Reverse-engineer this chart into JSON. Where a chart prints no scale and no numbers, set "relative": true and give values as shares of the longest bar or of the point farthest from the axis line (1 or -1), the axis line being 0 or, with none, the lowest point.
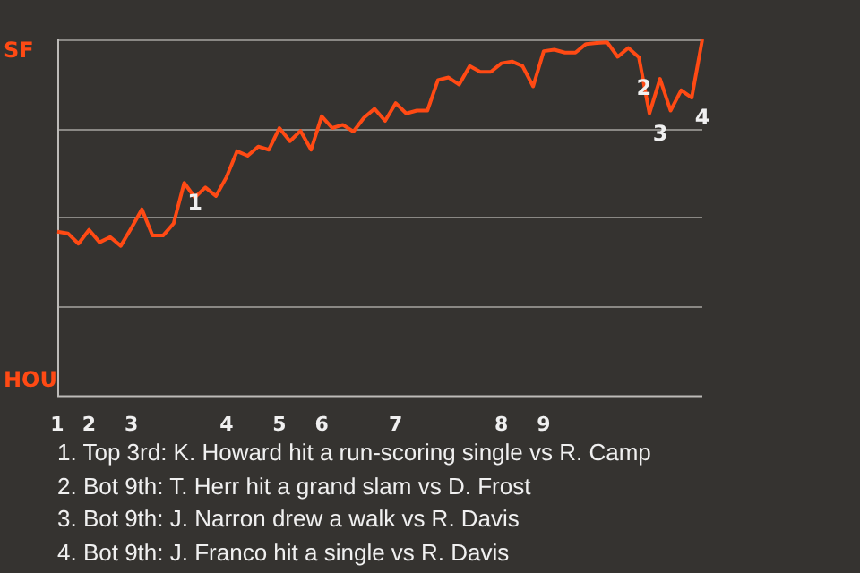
{
  "chart_data": {
    "type": "line",
    "relative": true,
    "categories": [
      "1",
      null,
      null,
      "2",
      null,
      null,
      null,
      "3",
      null,
      null,
      null,
      null,
      null,
      null,
      null,
      null,
      "4",
      null,
      null,
      null,
      null,
      "5",
      null,
      null,
      null,
      "6",
      null,
      null,
      null,
      null,
      null,
      null,
      "7",
      null,
      null,
      null,
      null,
      null,
      null,
      null,
      null,
      null,
      "8",
      null,
      null,
      null,
      "9",
      null,
      null,
      null,
      null,
      null,
      null,
      null,
      null,
      null,
      null,
      null,
      null,
      null,
      null,
      null
    ],
    "series": [
      {
        "color": "#ff4a14",
        "values": [
          0.46,
          0.455,
          0.426,
          0.465,
          0.43,
          0.445,
          0.42,
          0.47,
          0.523,
          0.449,
          0.449,
          0.483,
          0.597,
          0.556,
          0.584,
          0.56,
          0.613,
          0.686,
          0.673,
          0.699,
          0.69,
          0.751,
          0.714,
          0.743,
          0.69,
          0.784,
          0.751,
          0.76,
          0.741,
          0.78,
          0.805,
          0.771,
          0.821,
          0.792,
          0.8,
          0.8,
          0.886,
          0.893,
          0.873,
          0.925,
          0.909,
          0.909,
          0.933,
          0.938,
          0.925,
          0.868,
          0.967,
          0.971,
          0.963,
          0.963,
          0.987,
          0.99,
          0.992,
          0.951,
          0.976,
          0.95,
          0.792,
          0.889,
          0.8,
          0.857,
          0.836,
          1.0
        ]
      }
    ],
    "legend": false,
    "marker": "none",
    "line_style": "solid",
    "ref_lines": [
      {
        "axis": "y",
        "value": 0.25,
        "color": "#8a8884"
      },
      {
        "axis": "y",
        "value": 0.5,
        "color": "#8a8884"
      },
      {
        "axis": "y",
        "value": 0.75,
        "color": "#8a8884"
      },
      {
        "axis": "y",
        "value": 1,
        "color": "#8a8884"
      }
    ],
    "annotations": [
      "SF",
      "HOU",
      {
        "text": "1",
        "y": 0.597
      },
      {
        "text": "2",
        "y": 0.889
      },
      {
        "text": "3",
        "y": 0.792
      },
      {
        "text": "4",
        "y": 0.836
      },
      "1. Top 3rd: K. Howard hit a run-scoring single vs R. Camp",
      "2. Bot 9th: T. Herr hit a grand slam vs D. Frost",
      "3. Bot 9th: J. Narron drew a walk vs R. Davis",
      "4. Bot 9th: J. Franco hit a single vs R. Davis"
    ]
  }
}
